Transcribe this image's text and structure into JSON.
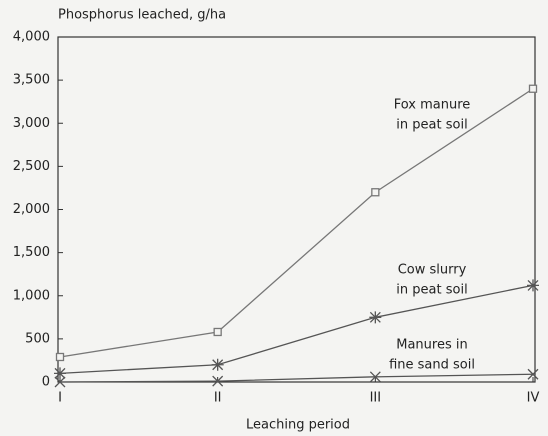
{
  "chart_data": {
    "type": "line",
    "title": "Phosphorus leached, g/ha",
    "x_label": "Leaching period",
    "categories": [
      "I",
      "II",
      "III",
      "IV"
    ],
    "series": [
      {
        "name": [
          "Fox manure",
          "in peat soil"
        ],
        "color": "#777777",
        "marker": "square",
        "values": [
          290,
          580,
          2200,
          3400
        ]
      },
      {
        "name": [
          "Cow slurry",
          "in peat soil"
        ],
        "color": "#555555",
        "marker": "star",
        "values": [
          100,
          200,
          750,
          1120
        ]
      },
      {
        "name": [
          "Manures in",
          "fine sand soil"
        ],
        "color": "#555555",
        "marker": "x",
        "values": [
          0,
          10,
          60,
          90
        ]
      }
    ],
    "ylim": [
      0,
      4000
    ],
    "yticks": [
      0,
      500,
      {
        "value": 1000,
        "label": "1,000"
      },
      {
        "value": 1500,
        "label": "1,500"
      },
      {
        "value": 2000,
        "label": "2,000"
      },
      {
        "value": 2500,
        "label": "2,500"
      },
      {
        "value": 3000,
        "label": "3,000"
      },
      {
        "value": 3500,
        "label": "3,500"
      },
      {
        "value": 4000,
        "label": "4,000"
      }
    ],
    "grid": false
  }
}
